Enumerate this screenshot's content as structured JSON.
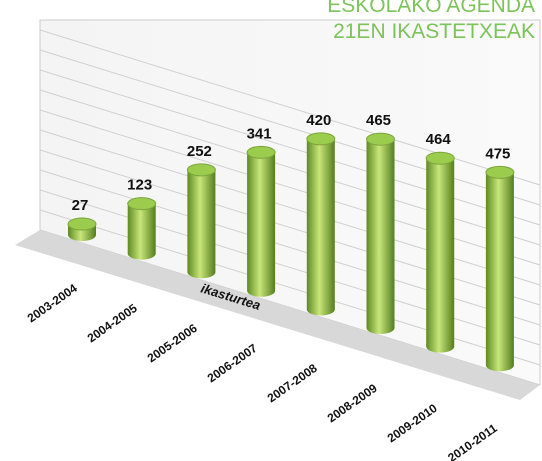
{
  "chart_data": {
    "type": "bar",
    "title": "ESKOLAKO AGENDA",
    "subtitle": "21EN IKASTETXEAK",
    "x_label": "ikasturtea",
    "categories": [
      "2003-2004",
      "2004-2005",
      "2005-2006",
      "2006-2007",
      "2007-2008",
      "2008-2009",
      "2009-2010",
      "2010-2011"
    ],
    "values": [
      27,
      123,
      252,
      341,
      420,
      465,
      464,
      475
    ],
    "color": "#9ccc4e",
    "ylim": [
      0,
      500
    ]
  }
}
